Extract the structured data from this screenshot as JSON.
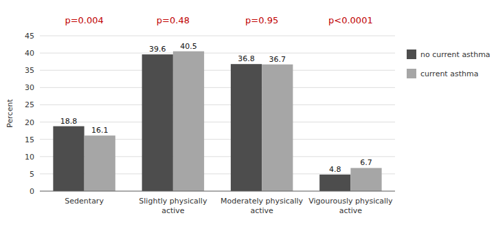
{
  "chart_data": {
    "type": "bar",
    "categories": [
      "Sedentary",
      "Slightly physically\nactive",
      "Moderately physically\nactive",
      "Vigourously physically\nactive"
    ],
    "series": [
      {
        "name": "no current asthma",
        "color": "#4d4d4d",
        "values": [
          18.8,
          39.6,
          36.8,
          4.8
        ]
      },
      {
        "name": "current asthma",
        "color": "#a6a6a6",
        "values": [
          16.1,
          40.5,
          36.7,
          6.7
        ]
      }
    ],
    "annotations": [
      {
        "text": "p=0.004",
        "color": "#c00000"
      },
      {
        "text": "p=0.48",
        "color": "#c00000"
      },
      {
        "text": "p=0.95",
        "color": "#c00000"
      },
      {
        "text": "p<0.0001",
        "color": "#c00000"
      }
    ],
    "ylabel": "Percent",
    "ylim": [
      0,
      45
    ],
    "yticks": [
      0,
      5,
      10,
      15,
      20,
      25,
      30,
      35,
      40,
      45
    ],
    "grid": true,
    "legend": "right",
    "data_labels": true
  }
}
